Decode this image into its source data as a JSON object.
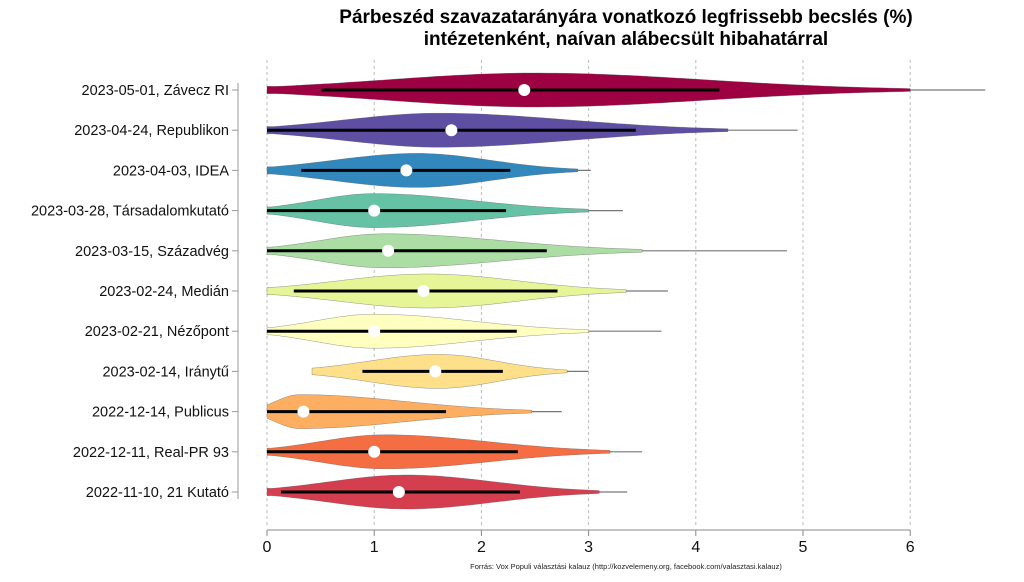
{
  "chart_data": {
    "type": "violin",
    "title": "Párbeszéd szavazatarányára vonatkozó legfrissebb becslés (%)",
    "subtitle": "intézetenként, naívan alábecsült hibahatárral",
    "xlabel": "",
    "ylabel": "",
    "xlim": [
      0,
      6
    ],
    "x_ticks": [
      "0",
      "1",
      "2",
      "3",
      "4",
      "5",
      "6"
    ],
    "grid": "vertical dashed",
    "source": "Forrás: Vox Populi választási kalauz (http://kozvelemeny.org, facebook.com/valasztasi.kalauz)",
    "series": [
      {
        "label": "2023-05-01, Závecz RI",
        "color": "#9E0142",
        "point": 2.4,
        "interval": [
          0.51,
          4.22
        ],
        "range": [
          0,
          6.0
        ],
        "tail_end": 6.7,
        "peak": 2.5
      },
      {
        "label": "2023-04-24, Republikon",
        "color": "#5E4FA2",
        "point": 1.72,
        "interval": [
          0,
          3.44
        ],
        "range": [
          0,
          4.3
        ],
        "tail_end": 4.95,
        "peak": 1.6
      },
      {
        "label": "2023-04-03, IDEA",
        "color": "#3288BD",
        "point": 1.3,
        "interval": [
          0.32,
          2.27
        ],
        "range": [
          0,
          2.9
        ],
        "tail_end": 3.02,
        "peak": 1.4
      },
      {
        "label": "2023-03-28, Társadalomkutató",
        "color": "#66C2A5",
        "point": 1.0,
        "interval": [
          0,
          2.23
        ],
        "range": [
          0,
          3.0
        ],
        "tail_end": 3.32,
        "peak": 1.0
      },
      {
        "label": "2023-03-15, Századvég",
        "color": "#ABDDA4",
        "point": 1.13,
        "interval": [
          0,
          2.61
        ],
        "range": [
          0,
          3.5
        ],
        "tail_end": 4.85,
        "peak": 1.1
      },
      {
        "label": "2023-02-24, Medián",
        "color": "#E6F598",
        "point": 1.46,
        "interval": [
          0.25,
          2.71
        ],
        "range": [
          0,
          3.35
        ],
        "tail_end": 3.74,
        "peak": 1.5
      },
      {
        "label": "2023-02-21, Nézőpont",
        "color": "#FFFFBF",
        "point": 1.0,
        "interval": [
          0,
          2.33
        ],
        "range": [
          0,
          3.0
        ],
        "tail_end": 3.68,
        "peak": 1.0
      },
      {
        "label": "2023-02-14, Iránytű",
        "color": "#FEE08B",
        "point": 1.57,
        "interval": [
          0.89,
          2.2
        ],
        "range": [
          0.42,
          2.8
        ],
        "tail_end": 3.0,
        "peak": 1.6
      },
      {
        "label": "2022-12-14, Publicus",
        "color": "#FDAE61",
        "point": 0.34,
        "interval": [
          0,
          1.67
        ],
        "range": [
          0,
          2.47
        ],
        "tail_end": 2.75,
        "peak": 0.3
      },
      {
        "label": "2022-12-11, Real-PR 93",
        "color": "#F46D43",
        "point": 1.0,
        "interval": [
          0,
          2.34
        ],
        "range": [
          0,
          3.2
        ],
        "tail_end": 3.5,
        "peak": 1.1
      },
      {
        "label": "2022-11-10, 21 Kutató",
        "color": "#D53E4F",
        "point": 1.23,
        "interval": [
          0.13,
          2.36
        ],
        "range": [
          0,
          3.1
        ],
        "tail_end": 3.36,
        "peak": 1.3
      }
    ]
  }
}
